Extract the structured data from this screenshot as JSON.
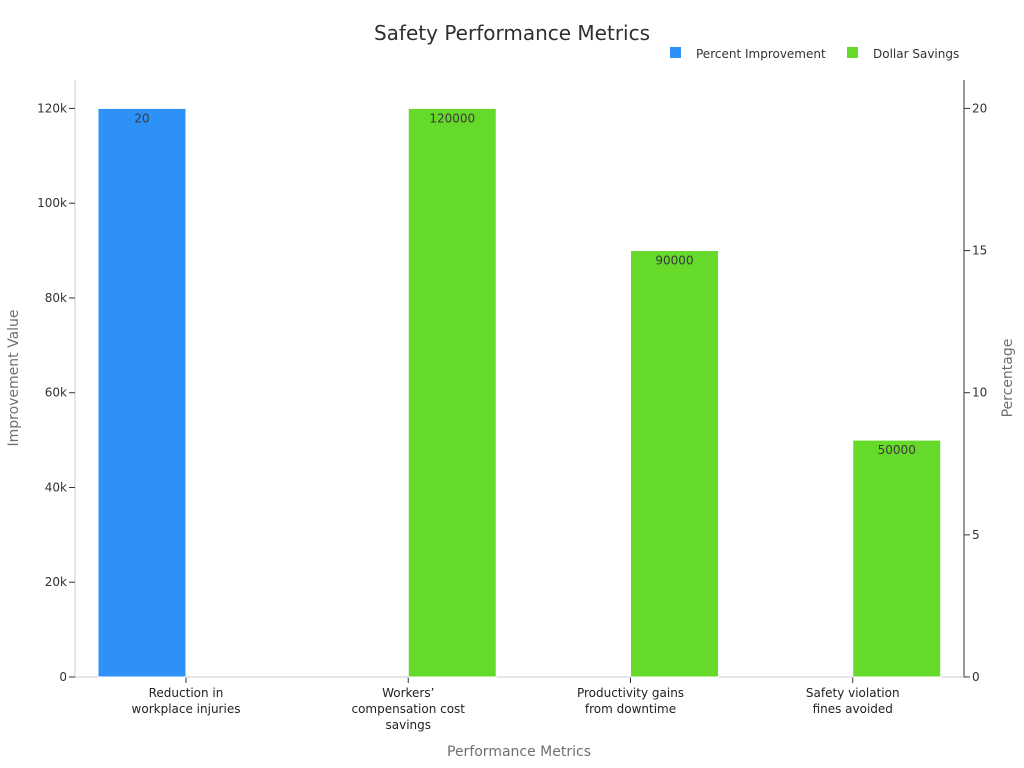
{
  "chart_data": {
    "type": "bar",
    "title": "Safety Performance Metrics",
    "xlabel": "Performance Metrics",
    "ylabel": "Improvement Value",
    "y2label": "Percentage",
    "categories": [
      [
        "Reduction in",
        "workplace injuries"
      ],
      [
        "Workers’",
        "compensation cost",
        "savings"
      ],
      [
        "Productivity gains",
        "from downtime"
      ],
      [
        "Safety violation",
        "fines avoided"
      ]
    ],
    "series": [
      {
        "name": "Percent Improvement",
        "color": "#2e91f7",
        "axis": "right",
        "values": [
          20,
          null,
          null,
          null
        ]
      },
      {
        "name": "Dollar Savings",
        "color": "#66da2a",
        "axis": "left",
        "values": [
          null,
          120000,
          90000,
          50000
        ]
      }
    ],
    "ylim": [
      0,
      126000
    ],
    "y2lim": [
      0,
      21
    ],
    "yticks": [
      0,
      20000,
      40000,
      60000,
      80000,
      100000,
      120000
    ],
    "yticklabels": [
      "0",
      "20k",
      "40k",
      "60k",
      "80k",
      "100k",
      "120k"
    ],
    "y2ticks": [
      0,
      5,
      10,
      15,
      20
    ],
    "data_labels": [
      [
        "20",
        null,
        null,
        null
      ],
      [
        null,
        "120000",
        "90000",
        "50000"
      ]
    ],
    "legend_position": "top-right",
    "grid": false
  }
}
